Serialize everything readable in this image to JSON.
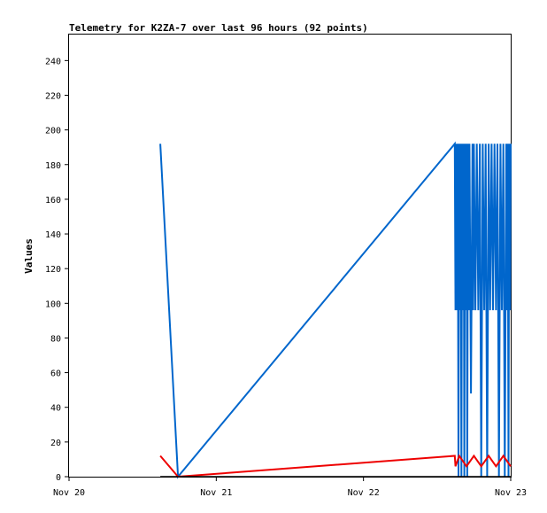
{
  "chart_data": {
    "type": "line",
    "title": "Telemetry for K2ZA-7 over last 96 hours (92 points)",
    "xlabel": "",
    "ylabel": "Values",
    "xlim": [
      "Nov 20",
      "Nov 23"
    ],
    "ylim": [
      0,
      255
    ],
    "x_ticks": [
      "Nov 20",
      "Nov 21",
      "Nov 22",
      "Nov 23"
    ],
    "y_ticks": [
      0,
      20,
      40,
      60,
      80,
      100,
      120,
      140,
      160,
      180,
      200,
      220,
      240
    ],
    "grid": false,
    "series": [
      {
        "color": "#0066cc",
        "points": [
          [
            20.62,
            192
          ],
          [
            20.74,
            0
          ],
          [
            22.62,
            192
          ],
          [
            22.625,
            96
          ],
          [
            22.63,
            192
          ],
          [
            22.635,
            96
          ],
          [
            22.64,
            192
          ],
          [
            22.645,
            0
          ],
          [
            22.65,
            192
          ],
          [
            22.655,
            96
          ],
          [
            22.66,
            192
          ],
          [
            22.665,
            0
          ],
          [
            22.67,
            192
          ],
          [
            22.675,
            96
          ],
          [
            22.68,
            192
          ],
          [
            22.685,
            0
          ],
          [
            22.69,
            192
          ],
          [
            22.695,
            96
          ],
          [
            22.7,
            192
          ],
          [
            22.705,
            0
          ],
          [
            22.71,
            192
          ],
          [
            22.715,
            96
          ],
          [
            22.72,
            192
          ],
          [
            22.73,
            48
          ],
          [
            22.74,
            192
          ],
          [
            22.745,
            96
          ],
          [
            22.75,
            192
          ],
          [
            22.76,
            96
          ],
          [
            22.77,
            192
          ],
          [
            22.78,
            96
          ],
          [
            22.79,
            192
          ],
          [
            22.8,
            0
          ],
          [
            22.81,
            192
          ],
          [
            22.82,
            96
          ],
          [
            22.83,
            192
          ],
          [
            22.84,
            0
          ],
          [
            22.85,
            192
          ],
          [
            22.86,
            96
          ],
          [
            22.87,
            192
          ],
          [
            22.88,
            96
          ],
          [
            22.89,
            192
          ],
          [
            22.9,
            96
          ],
          [
            22.91,
            192
          ],
          [
            22.92,
            0
          ],
          [
            22.93,
            192
          ],
          [
            22.94,
            96
          ],
          [
            22.95,
            192
          ],
          [
            22.96,
            0
          ],
          [
            22.97,
            192
          ],
          [
            22.975,
            96
          ],
          [
            22.98,
            192
          ],
          [
            22.985,
            0
          ],
          [
            22.99,
            192
          ],
          [
            22.995,
            96
          ],
          [
            23.0,
            192
          ]
        ]
      },
      {
        "color": "#ee0000",
        "points": [
          [
            20.62,
            12
          ],
          [
            20.74,
            0
          ],
          [
            22.62,
            12
          ],
          [
            22.625,
            6
          ],
          [
            22.65,
            12
          ],
          [
            22.7,
            6
          ],
          [
            22.75,
            12
          ],
          [
            22.8,
            6
          ],
          [
            22.85,
            12
          ],
          [
            22.9,
            6
          ],
          [
            22.95,
            12
          ],
          [
            23.0,
            6
          ]
        ]
      },
      {
        "color": "#000000",
        "points": [
          [
            20.62,
            0
          ],
          [
            22.62,
            0
          ],
          [
            23.0,
            0
          ]
        ]
      }
    ]
  }
}
